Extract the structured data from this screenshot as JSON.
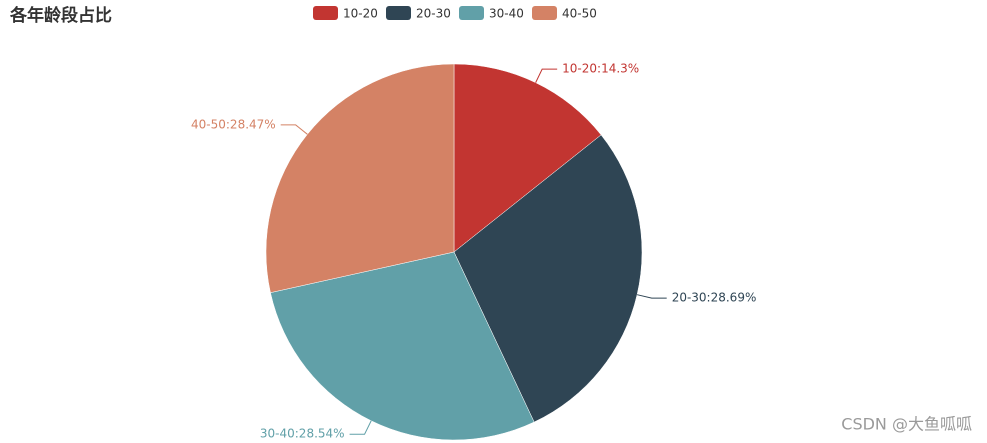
{
  "chart_data": {
    "type": "pie",
    "title": "各年龄段占比",
    "categories": [
      "10-20",
      "20-30",
      "30-40",
      "40-50"
    ],
    "values": [
      14.3,
      28.69,
      28.54,
      28.47
    ],
    "value_labels": [
      "10-20:14.3%",
      "20-30:28.69%",
      "30-40:28.54%",
      "40-50:28.47%"
    ],
    "colors": [
      "#c23531",
      "#2f4554",
      "#61a0a8",
      "#d48265"
    ],
    "legend": "top"
  },
  "watermark": "CSDN @大鱼呱呱"
}
